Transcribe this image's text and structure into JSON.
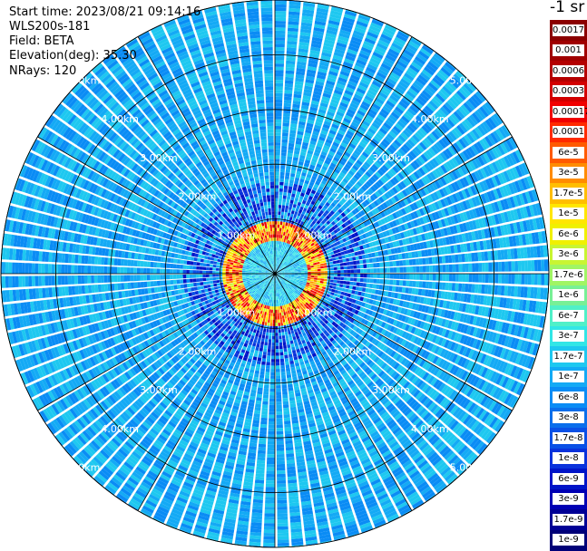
{
  "header": {
    "start_time": "Start time: 2023/08/21 09:14:16",
    "instrument": "WLS200s-181",
    "field": "Field: BETA",
    "elevation": "Elevation(deg): 35.30",
    "nrays": "NRays: 120"
  },
  "colorbar": {
    "title": "-1 sr",
    "labels": [
      "0.0017",
      "0.001",
      "0.0006",
      "0.0003",
      "0.00017",
      "0.0001",
      "6e-5",
      "3e-5",
      "1.7e-5",
      "1e-5",
      "6e-6",
      "3e-6",
      "1.7e-6",
      "1e-6",
      "6e-7",
      "3e-7",
      "1.7e-7",
      "1e-7",
      "6e-8",
      "3e-8",
      "1.7e-8",
      "1e-8",
      "6e-9",
      "3e-9",
      "1.7e-9",
      "1e-9"
    ],
    "colors": [
      "#8b0000",
      "#a00000",
      "#b40000",
      "#d20000",
      "#f00000",
      "#ff2a00",
      "#ff5a00",
      "#ff8c00",
      "#ffbe00",
      "#ffe600",
      "#f0f000",
      "#c8f532",
      "#a0f564",
      "#78f096",
      "#50f0c8",
      "#32e6e6",
      "#1ec8f0",
      "#14aaf5",
      "#0a8cf5",
      "#0a6eeb",
      "#0a50e6",
      "#0a32dc",
      "#0014c8",
      "#0000b4",
      "#000096",
      "#000078"
    ]
  },
  "chart_data": {
    "type": "heatmap",
    "projection": "polar PPI",
    "title": "",
    "field": "BETA",
    "unit": "sr-1",
    "range_labels": [
      "1.00km",
      "2.00km",
      "3.00km",
      "4.00km",
      "5.00km"
    ],
    "range_rings_km": [
      1,
      2,
      3,
      4,
      5
    ],
    "max_range_km": 5.0,
    "nrays": 120,
    "azimuth_lines_deg": [
      0,
      30,
      60,
      90,
      120,
      150,
      180,
      210,
      240,
      270,
      300,
      330
    ],
    "regions": [
      {
        "range_km": [
          0.0,
          0.6
        ],
        "beta": "1.7e-7"
      },
      {
        "range_km": [
          0.6,
          0.95
        ],
        "beta": "3e-5"
      },
      {
        "range_km": [
          0.95,
          1.7
        ],
        "beta": "1e-8"
      },
      {
        "range_km": [
          1.7,
          5.0
        ],
        "beta": "1e-7"
      }
    ]
  }
}
